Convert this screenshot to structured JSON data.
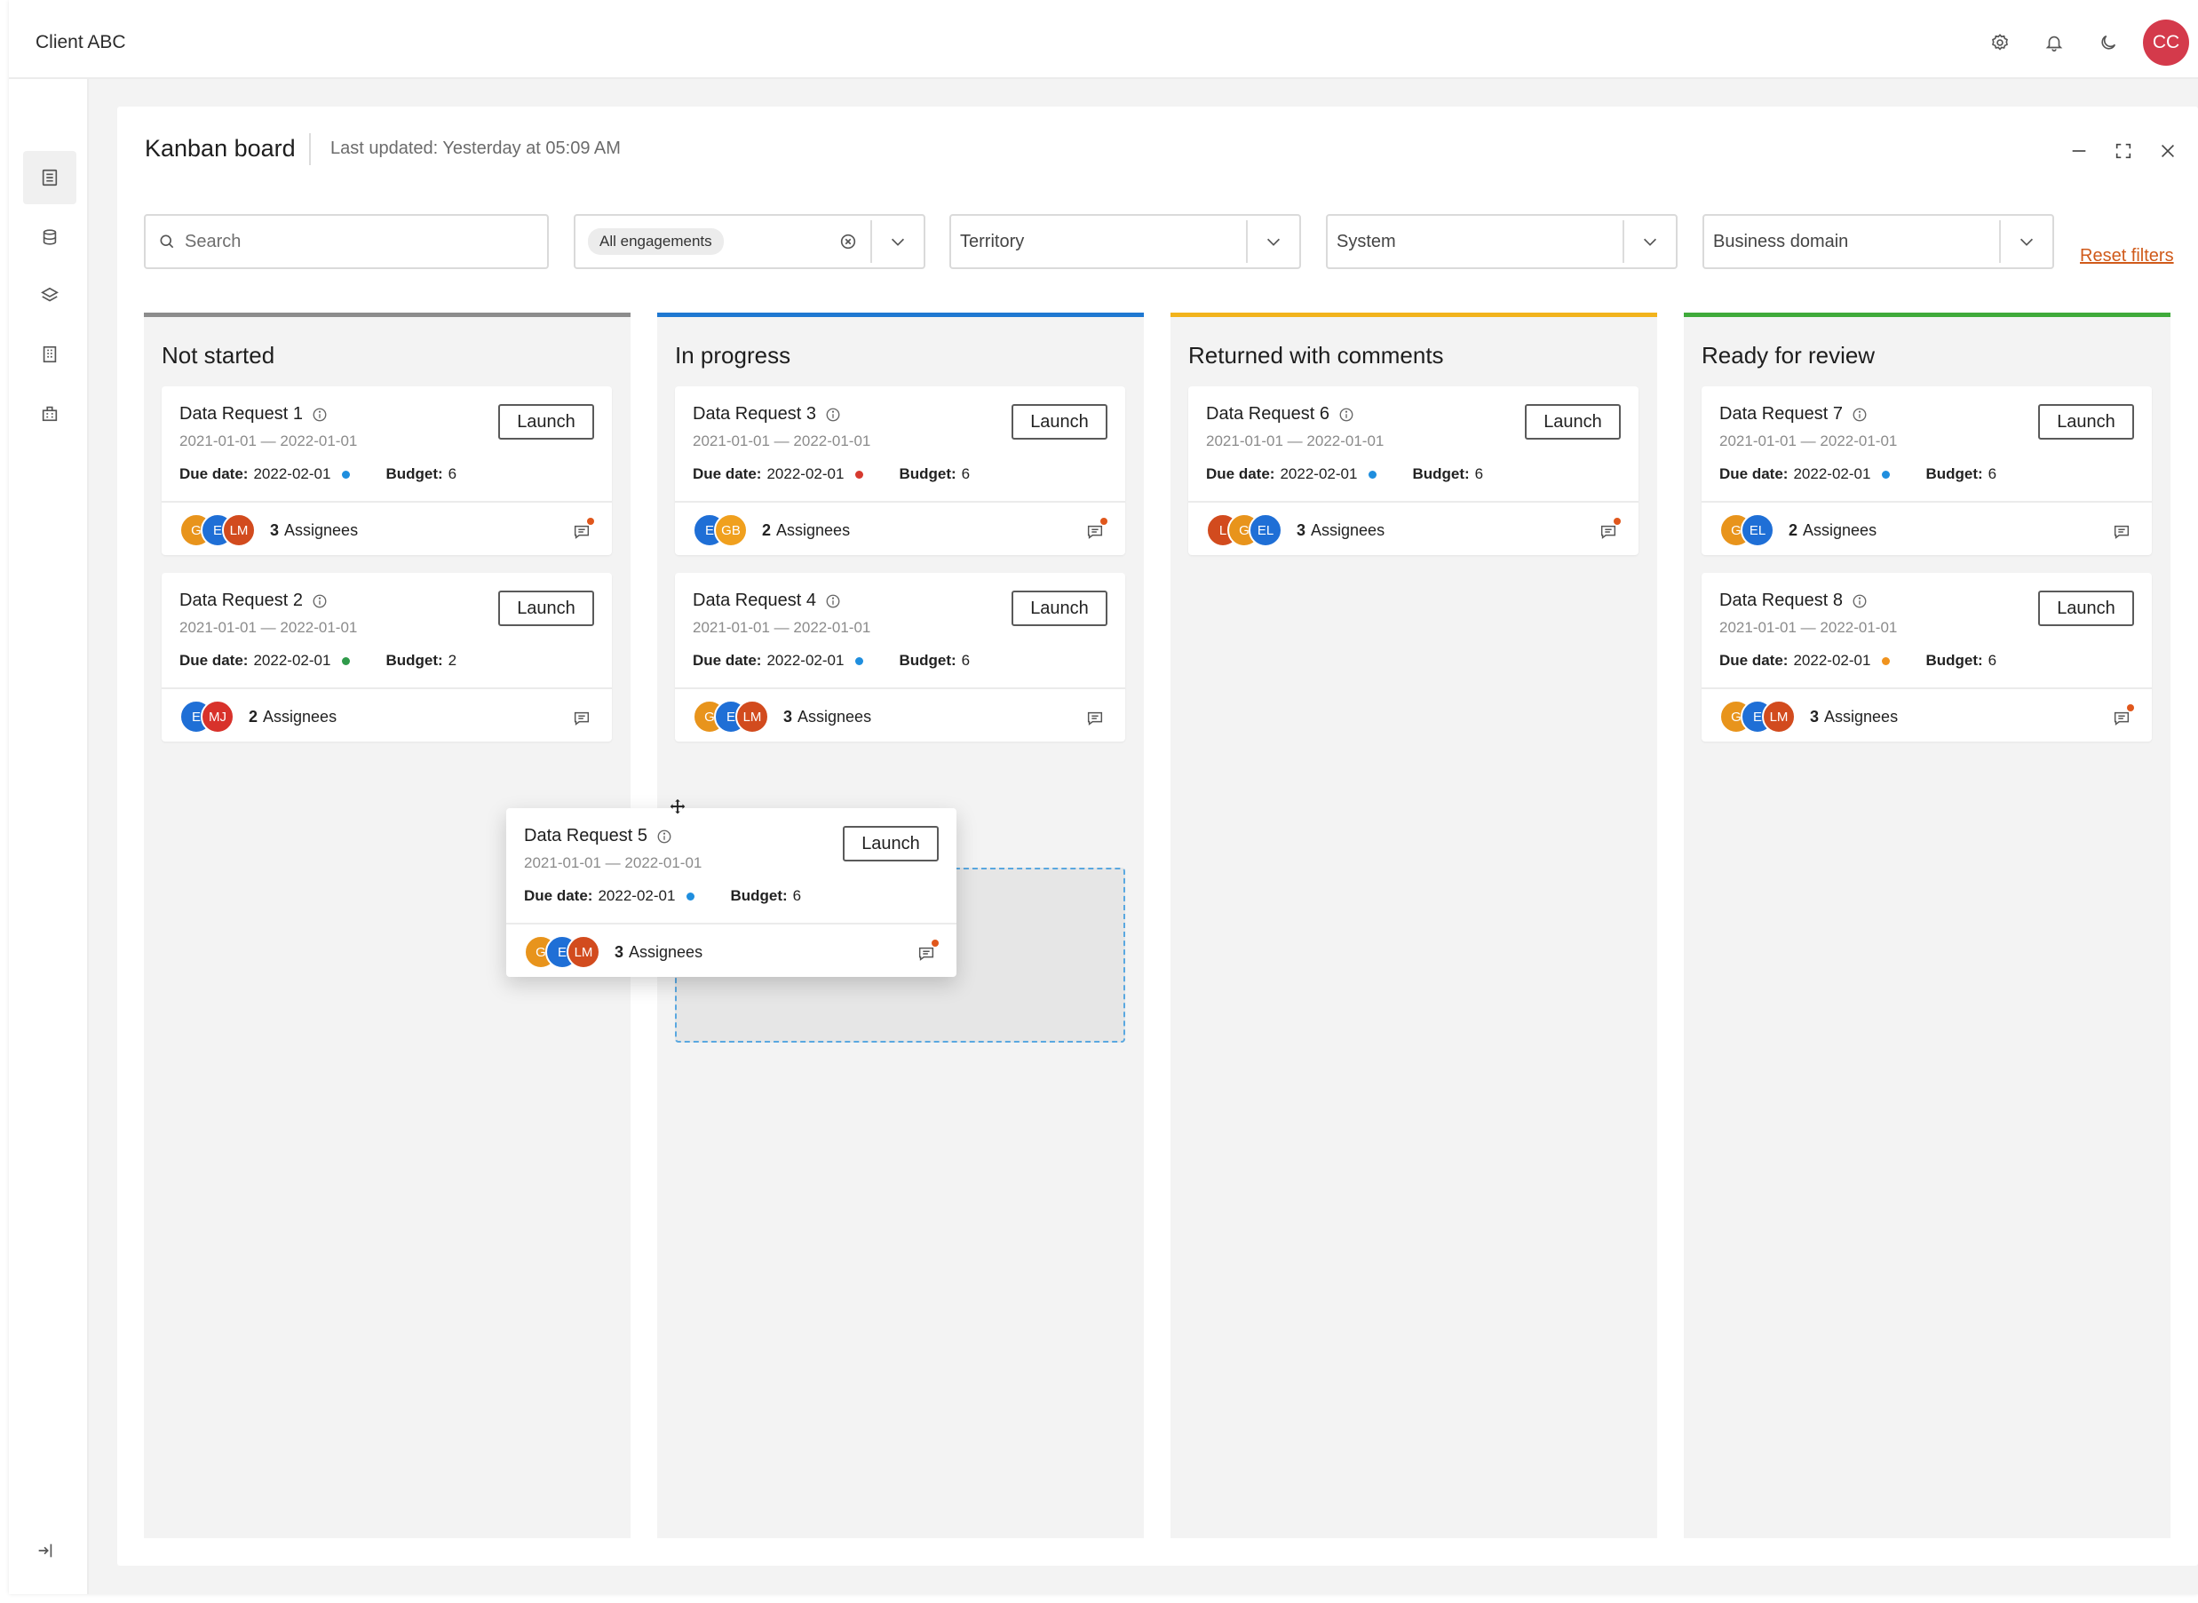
{
  "header": {
    "client_name": "Client ABC",
    "user_initials": "CC"
  },
  "panel": {
    "title": "Kanban board",
    "last_updated": "Last updated: Yesterday at 05:09 AM"
  },
  "filters": {
    "search_placeholder": "Search",
    "engagements_chip": "All engagements",
    "territory": "Territory",
    "system": "System",
    "business_domain": "Business domain",
    "reset": "Reset filters"
  },
  "colors": {
    "not_started": "#8c8c8c",
    "in_progress": "#1f78d1",
    "returned": "#f2b31c",
    "ready": "#3faa3a",
    "dot_blue": "#1f8ede",
    "dot_red": "#d63a2f",
    "dot_green": "#2f9a4a",
    "dot_orange": "#f0931e"
  },
  "columns": [
    {
      "title": "Not started"
    },
    {
      "title": "In progress"
    },
    {
      "title": "Returned with comments"
    },
    {
      "title": "Ready for review"
    }
  ],
  "cards": {
    "c1": {
      "title": "Data Request 1",
      "dates": "2021-01-01 — 2022-01-01",
      "due_label": "Due date:",
      "due": "2022-02-01",
      "budget_label": "Budget:",
      "budget": "6",
      "launch": "Launch",
      "assignee_count": "3",
      "assignee_label": "Assignees",
      "avatars": [
        "G",
        "E",
        "LM"
      ]
    },
    "c2": {
      "title": "Data Request 2",
      "dates": "2021-01-01 — 2022-01-01",
      "due_label": "Due date:",
      "due": "2022-02-01",
      "budget_label": "Budget:",
      "budget": "2",
      "launch": "Launch",
      "assignee_count": "2",
      "assignee_label": "Assignees",
      "avatars": [
        "E",
        "MJ"
      ]
    },
    "c3": {
      "title": "Data Request 3",
      "dates": "2021-01-01 — 2022-01-01",
      "due_label": "Due date:",
      "due": "2022-02-01",
      "budget_label": "Budget:",
      "budget": "6",
      "launch": "Launch",
      "assignee_count": "2",
      "assignee_label": "Assignees",
      "avatars": [
        "E",
        "GB"
      ]
    },
    "c4": {
      "title": "Data Request 4",
      "dates": "2021-01-01 — 2022-01-01",
      "due_label": "Due date:",
      "due": "2022-02-01",
      "budget_label": "Budget:",
      "budget": "6",
      "launch": "Launch",
      "assignee_count": "3",
      "assignee_label": "Assignees",
      "avatars": [
        "G",
        "E",
        "LM"
      ]
    },
    "c5": {
      "title": "Data Request 5",
      "dates": "2021-01-01 — 2022-01-01",
      "due_label": "Due date:",
      "due": "2022-02-01",
      "budget_label": "Budget:",
      "budget": "6",
      "launch": "Launch",
      "assignee_count": "3",
      "assignee_label": "Assignees",
      "avatars": [
        "G",
        "E",
        "LM"
      ]
    },
    "c6": {
      "title": "Data Request 6",
      "dates": "2021-01-01 — 2022-01-01",
      "due_label": "Due date:",
      "due": "2022-02-01",
      "budget_label": "Budget:",
      "budget": "6",
      "launch": "Launch",
      "assignee_count": "3",
      "assignee_label": "Assignees",
      "avatars": [
        "L",
        "G",
        "EL"
      ]
    },
    "c7": {
      "title": "Data Request 7",
      "dates": "2021-01-01 — 2022-01-01",
      "due_label": "Due date:",
      "due": "2022-02-01",
      "budget_label": "Budget:",
      "budget": "6",
      "launch": "Launch",
      "assignee_count": "2",
      "assignee_label": "Assignees",
      "avatars": [
        "G",
        "EL"
      ]
    },
    "c8": {
      "title": "Data Request 8",
      "dates": "2021-01-01 — 2022-01-01",
      "due_label": "Due date:",
      "due": "2022-02-01",
      "budget_label": "Budget:",
      "budget": "6",
      "launch": "Launch",
      "assignee_count": "3",
      "assignee_label": "Assignees",
      "avatars": [
        "G",
        "E",
        "LM"
      ]
    }
  },
  "icons": {
    "sidebar": [
      "dashboard-icon",
      "list-icon",
      "database-icon",
      "layers-icon",
      "building-icon",
      "organization-icon"
    ],
    "top": [
      "settings-icon",
      "bell-icon",
      "moon-icon"
    ]
  }
}
